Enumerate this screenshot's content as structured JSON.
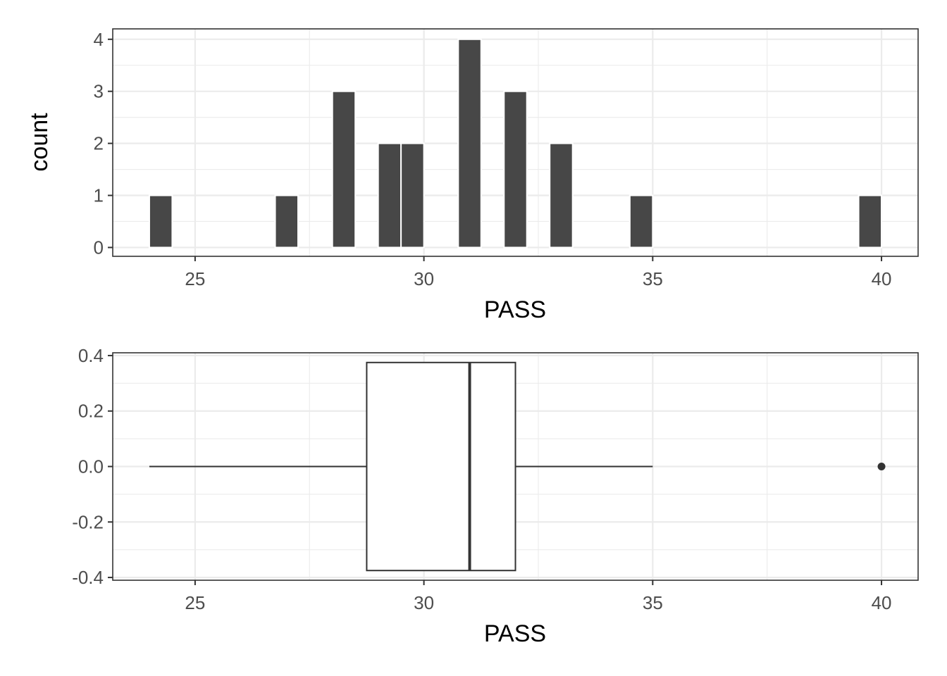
{
  "colors": {
    "bar_fill": "#474747",
    "bar_outline": "#ffffff",
    "box_line": "#333333",
    "box_fill": "#ffffff",
    "grid": "#ebebeb",
    "panel_border": "#333333",
    "tick_text": "#4d4d4d",
    "axis_title": "#000000"
  },
  "chart_data": [
    {
      "type": "bar",
      "subtype": "histogram",
      "xlabel": "PASS",
      "ylabel": "count",
      "bin_width": 0.5,
      "x": [
        24.25,
        27.0,
        28.25,
        29.25,
        29.75,
        31.0,
        32.0,
        33.0,
        34.75,
        39.75
      ],
      "values": [
        1,
        1,
        3,
        2,
        2,
        4,
        3,
        2,
        1,
        1
      ],
      "xlim": [
        23.2,
        40.8
      ],
      "ylim": [
        -0.17,
        4.2
      ],
      "x_ticks": [
        25,
        30,
        35,
        40
      ],
      "x_tick_labels": [
        "25",
        "30",
        "35",
        "40"
      ],
      "y_ticks": [
        0,
        1,
        2,
        3,
        4
      ],
      "y_tick_labels": [
        "0",
        "1",
        "2",
        "3",
        "4"
      ],
      "grid": true,
      "legend": "none"
    },
    {
      "type": "boxplot",
      "xlabel": "PASS",
      "ylabel": "",
      "min": 24.0,
      "q1": 28.75,
      "median": 31.0,
      "q3": 32.0,
      "whisker_high": 35.0,
      "outliers": [
        40.0
      ],
      "box_y_range": [
        -0.375,
        0.375
      ],
      "xlim": [
        23.2,
        40.8
      ],
      "ylim": [
        -0.41,
        0.41
      ],
      "x_ticks": [
        25,
        30,
        35,
        40
      ],
      "x_tick_labels": [
        "25",
        "30",
        "35",
        "40"
      ],
      "y_ticks": [
        0.4,
        0.2,
        0.0,
        -0.2,
        -0.4
      ],
      "y_tick_labels": [
        "0.4",
        "0.2",
        "0.0",
        "-0.2",
        "-0.4"
      ],
      "grid": true,
      "legend": "none"
    }
  ]
}
